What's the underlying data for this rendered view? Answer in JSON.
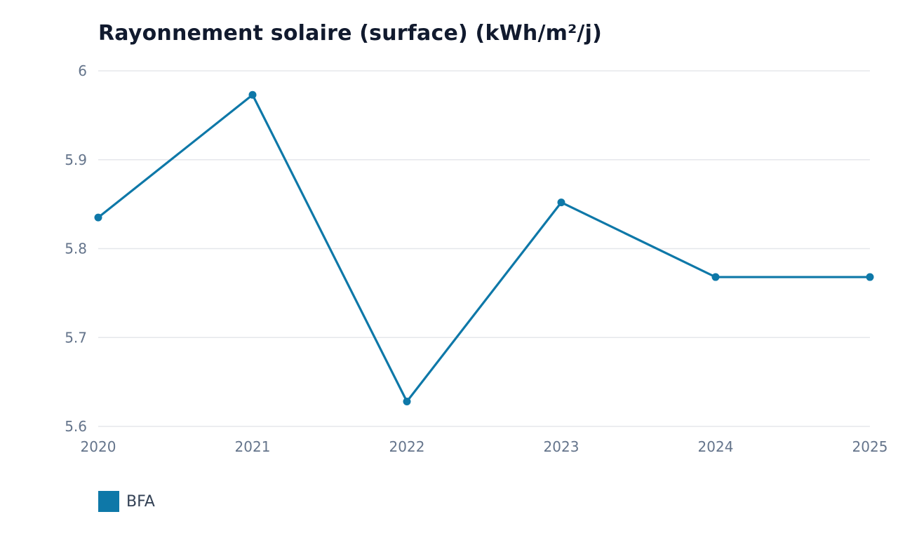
{
  "chart_data": {
    "type": "line",
    "title": "Rayonnement solaire (surface) (kWh/m²/j)",
    "xlabel": "",
    "ylabel": "",
    "x": [
      "2020",
      "2021",
      "2022",
      "2023",
      "2024",
      "2025"
    ],
    "y_ticks": [
      "5.6",
      "5.7",
      "5.8",
      "5.9",
      "6"
    ],
    "ylim": [
      5.6,
      6.0
    ],
    "grid": true,
    "legend_position": "bottom-left",
    "series": [
      {
        "name": "BFA",
        "color": "#0e78a8",
        "values": [
          5.835,
          5.973,
          5.628,
          5.852,
          5.768,
          5.768
        ]
      }
    ]
  },
  "colors": {
    "grid": "#e5e7eb",
    "tick_text": "#64748b",
    "title_text": "#111a2e",
    "legend_text": "#334155"
  }
}
